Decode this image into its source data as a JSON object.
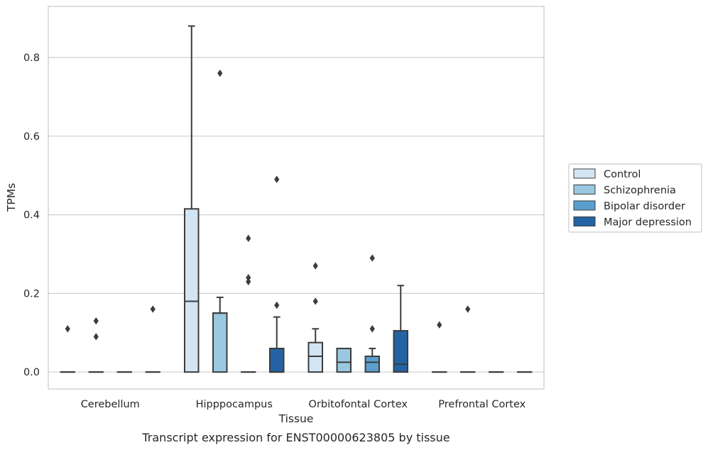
{
  "chart_data": {
    "type": "box",
    "title": "",
    "caption": "Transcript expression for ENST00000623805 by tissue",
    "xlabel": "Tissue",
    "ylabel": "TPMs",
    "ylim": [
      -0.043,
      0.93
    ],
    "yticks": [
      "0.0",
      "0.2",
      "0.4",
      "0.6",
      "0.8"
    ],
    "ytick_values": [
      0.0,
      0.2,
      0.4,
      0.6,
      0.8
    ],
    "grid": "horizontal",
    "legend_position": "right",
    "categories": [
      "Cerebellum",
      "Hipppocampus",
      "Orbitofontal Cortex",
      "Prefrontal Cortex"
    ],
    "series": [
      {
        "name": "Control",
        "color": "#d3e4f3",
        "boxes": [
          {
            "q1": 0,
            "median": 0,
            "q3": 0,
            "whisker_low": 0,
            "whisker_high": 0,
            "outliers": [
              0.11
            ]
          },
          {
            "q1": 0,
            "median": 0.18,
            "q3": 0.415,
            "whisker_low": 0,
            "whisker_high": 0.88,
            "outliers": []
          },
          {
            "q1": 0,
            "median": 0.04,
            "q3": 0.075,
            "whisker_low": 0,
            "whisker_high": 0.11,
            "outliers": [
              0.18,
              0.27
            ]
          },
          {
            "q1": 0,
            "median": 0,
            "q3": 0,
            "whisker_low": 0,
            "whisker_high": 0,
            "outliers": [
              0.12
            ]
          }
        ]
      },
      {
        "name": "Schizophrenia",
        "color": "#9ac8e0",
        "boxes": [
          {
            "q1": 0,
            "median": 0,
            "q3": 0,
            "whisker_low": 0,
            "whisker_high": 0,
            "outliers": [
              0.09,
              0.13
            ]
          },
          {
            "q1": 0,
            "median": 0.15,
            "q3": 0.15,
            "whisker_low": 0,
            "whisker_high": 0.19,
            "outliers": [
              0.76
            ]
          },
          {
            "q1": 0,
            "median": 0.025,
            "q3": 0.06,
            "whisker_low": 0,
            "whisker_high": 0.06,
            "outliers": []
          },
          {
            "q1": 0,
            "median": 0,
            "q3": 0,
            "whisker_low": 0,
            "whisker_high": 0,
            "outliers": [
              0.16
            ]
          }
        ]
      },
      {
        "name": "Bipolar disorder",
        "color": "#5a9fcd",
        "boxes": [
          {
            "q1": 0,
            "median": 0,
            "q3": 0,
            "whisker_low": 0,
            "whisker_high": 0,
            "outliers": []
          },
          {
            "q1": 0,
            "median": 0,
            "q3": 0,
            "whisker_low": 0,
            "whisker_high": 0,
            "outliers": [
              0.23,
              0.24,
              0.34
            ]
          },
          {
            "q1": 0,
            "median": 0.025,
            "q3": 0.04,
            "whisker_low": 0,
            "whisker_high": 0.06,
            "outliers": [
              0.11,
              0.29
            ]
          },
          {
            "q1": 0,
            "median": 0,
            "q3": 0,
            "whisker_low": 0,
            "whisker_high": 0,
            "outliers": []
          }
        ]
      },
      {
        "name": "Major depression",
        "color": "#2363a5",
        "boxes": [
          {
            "q1": 0,
            "median": 0,
            "q3": 0,
            "whisker_low": 0,
            "whisker_high": 0,
            "outliers": [
              0.16
            ]
          },
          {
            "q1": 0,
            "median": 0,
            "q3": 0.06,
            "whisker_low": 0,
            "whisker_high": 0.14,
            "outliers": [
              0.17,
              0.49
            ]
          },
          {
            "q1": 0,
            "median": 0.02,
            "q3": 0.105,
            "whisker_low": 0,
            "whisker_high": 0.22,
            "outliers": []
          },
          {
            "q1": 0,
            "median": 0,
            "q3": 0,
            "whisker_low": 0,
            "whisker_high": 0,
            "outliers": []
          }
        ]
      }
    ]
  },
  "colors": {
    "grid": "#cfcfcf",
    "frame": "#cccccc",
    "box_edge": "#3c3c3c",
    "outlier": "#3c3c3c"
  }
}
